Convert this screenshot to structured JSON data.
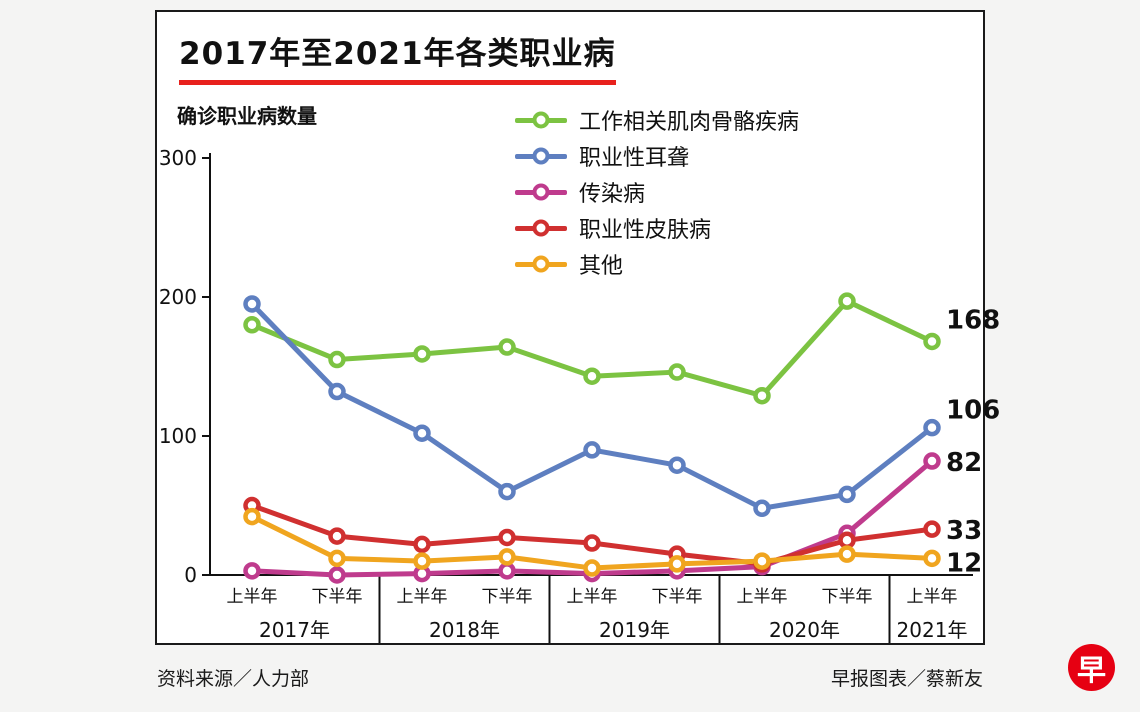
{
  "title": "2017年至2021年各类职业病",
  "y_axis_label": "确诊职业病数量",
  "footer": {
    "source": "资料来源／人力部",
    "credit": "早报图表／蔡新友"
  },
  "logo": {
    "char": "早",
    "color": "#e60012"
  },
  "colors": {
    "title_underline": "#e8211d",
    "axis": "#111111",
    "card_border": "#1a1a1a"
  },
  "chart_data": {
    "type": "line",
    "title": "2017年至2021年各类职业病",
    "ylabel": "确诊职业病数量",
    "ylim": [
      0,
      300
    ],
    "y_ticks": [
      0,
      100,
      200,
      300
    ],
    "grid": false,
    "legend_position": "top-center",
    "x_tick_labels": [
      "上半年",
      "下半年",
      "上半年",
      "下半年",
      "上半年",
      "下半年",
      "上半年",
      "下半年",
      "上半年"
    ],
    "year_groups": [
      {
        "label": "2017年",
        "span": 2
      },
      {
        "label": "2018年",
        "span": 2
      },
      {
        "label": "2019年",
        "span": 2
      },
      {
        "label": "2020年",
        "span": 2
      },
      {
        "label": "2021年",
        "span": 1
      }
    ],
    "series": [
      {
        "name": "工作相关肌肉骨骼疾病",
        "color": "#7cc342",
        "values": [
          180,
          155,
          159,
          164,
          143,
          146,
          129,
          197,
          168
        ],
        "end_label": "168"
      },
      {
        "name": "职业性耳聋",
        "color": "#5e7fc0",
        "values": [
          195,
          132,
          102,
          60,
          90,
          79,
          48,
          58,
          106
        ],
        "end_label": "106"
      },
      {
        "name": "传染病",
        "color": "#bf3b8d",
        "values": [
          3,
          0,
          1,
          3,
          1,
          3,
          6,
          30,
          82
        ],
        "end_label": "82"
      },
      {
        "name": "职业性皮肤病",
        "color": "#d03030",
        "values": [
          50,
          28,
          22,
          27,
          23,
          15,
          8,
          25,
          33
        ],
        "end_label": "33"
      },
      {
        "name": "其他",
        "color": "#f0a51f",
        "values": [
          42,
          12,
          10,
          13,
          5,
          8,
          10,
          15,
          12
        ],
        "end_label": "12"
      }
    ]
  }
}
